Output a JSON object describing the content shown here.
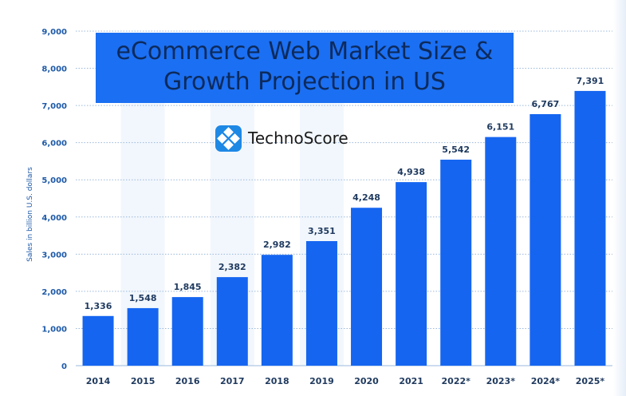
{
  "chart_data": {
    "type": "bar",
    "title_lines": [
      "eCommerce Web Market Size &",
      "Growth Projection in US"
    ],
    "brand": "TechnoScore",
    "ylabel": "Sales in billion U.S. dollars",
    "ylim": [
      0,
      9000
    ],
    "yticks": [
      "0",
      "1,000",
      "2,000",
      "3,000",
      "4,000",
      "5,000",
      "6,000",
      "7,000",
      "8,000",
      "9,000"
    ],
    "categories": [
      "2014",
      "2015",
      "2016",
      "2017",
      "2018",
      "2019",
      "2020",
      "2021",
      "2022*",
      "2023*",
      "2024*",
      "2025*"
    ],
    "values": [
      1336,
      1548,
      1845,
      2382,
      2982,
      3351,
      4248,
      4938,
      5542,
      6151,
      6767,
      7391
    ],
    "value_labels": [
      "1,336",
      "1,548",
      "1,845",
      "2,382",
      "2,982",
      "3,351",
      "4,248",
      "4,938",
      "5,542",
      "6,151",
      "6,767",
      "7,391"
    ],
    "grid": true,
    "colors": {
      "bar": "#1565f0",
      "label": "#1f3a5f",
      "tick": "#1e5aa8",
      "grid": "#9bb8dc",
      "title_bg": "#1b6ff2",
      "title_text": "#0d2a5c"
    }
  }
}
